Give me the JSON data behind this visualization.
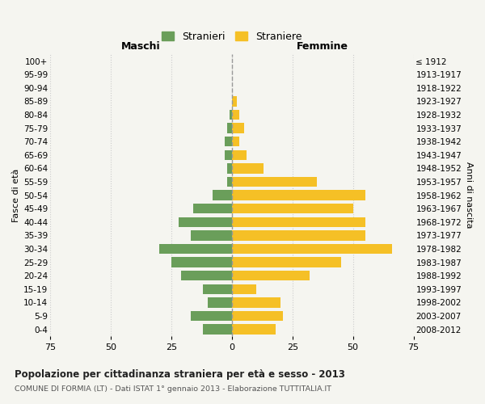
{
  "age_groups": [
    "0-4",
    "5-9",
    "10-14",
    "15-19",
    "20-24",
    "25-29",
    "30-34",
    "35-39",
    "40-44",
    "45-49",
    "50-54",
    "55-59",
    "60-64",
    "65-69",
    "70-74",
    "75-79",
    "80-84",
    "85-89",
    "90-94",
    "95-99",
    "100+"
  ],
  "birth_years": [
    "2008-2012",
    "2003-2007",
    "1998-2002",
    "1993-1997",
    "1988-1992",
    "1983-1987",
    "1978-1982",
    "1973-1977",
    "1968-1972",
    "1963-1967",
    "1958-1962",
    "1953-1957",
    "1948-1952",
    "1943-1947",
    "1938-1942",
    "1933-1937",
    "1928-1932",
    "1923-1927",
    "1918-1922",
    "1913-1917",
    "≤ 1912"
  ],
  "maschi": [
    12,
    17,
    10,
    12,
    21,
    25,
    30,
    17,
    22,
    16,
    8,
    2,
    2,
    3,
    3,
    2,
    1,
    0,
    0,
    0,
    0
  ],
  "femmine": [
    18,
    21,
    20,
    10,
    32,
    45,
    66,
    55,
    55,
    50,
    55,
    35,
    13,
    6,
    3,
    5,
    3,
    2,
    0,
    0,
    0
  ],
  "male_color": "#6a9e5a",
  "female_color": "#f5c026",
  "grid_color": "#cccccc",
  "center_line_color": "#999999",
  "bg_color": "#f5f5f0",
  "plot_bg_color": "#f5f5f0",
  "xlim": 75,
  "title": "Popolazione per cittadinanza straniera per età e sesso - 2013",
  "subtitle": "COMUNE DI FORMIA (LT) - Dati ISTAT 1° gennaio 2013 - Elaborazione TUTTITALIA.IT",
  "xlabel_left": "Maschi",
  "xlabel_right": "Femmine",
  "ylabel_left": "Fasce di età",
  "ylabel_right": "Anni di nascita",
  "legend_male": "Stranieri",
  "legend_female": "Straniere"
}
